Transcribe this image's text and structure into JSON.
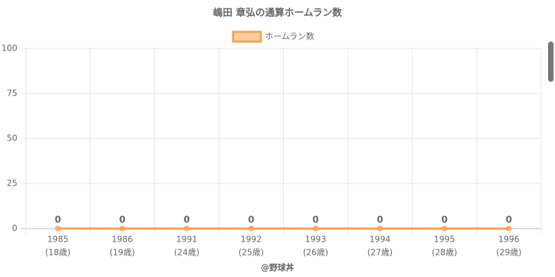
{
  "chart_data": {
    "type": "line",
    "title": "嶋田 章弘の通算ホームラン数",
    "categories": [
      [
        "1985",
        "(18歳)"
      ],
      [
        "1986",
        "(19歳)"
      ],
      [
        "1991",
        "(24歳)"
      ],
      [
        "1992",
        "(25歳)"
      ],
      [
        "1993",
        "(26歳)"
      ],
      [
        "1994",
        "(27歳)"
      ],
      [
        "1995",
        "(28歳)"
      ],
      [
        "1996",
        "(29歳)"
      ]
    ],
    "series": [
      {
        "name": "ホームラン数",
        "color": "#f5a04a",
        "values": [
          0,
          0,
          0,
          0,
          0,
          0,
          0,
          0
        ],
        "value_labels": [
          "0",
          "0",
          "0",
          "0",
          "0",
          "0",
          "0",
          "0"
        ]
      }
    ],
    "x_label": "@野球丼",
    "ylim": [
      0,
      100
    ],
    "yticks": [
      0,
      25,
      50,
      75,
      100
    ],
    "grid": true,
    "legend": "top"
  }
}
